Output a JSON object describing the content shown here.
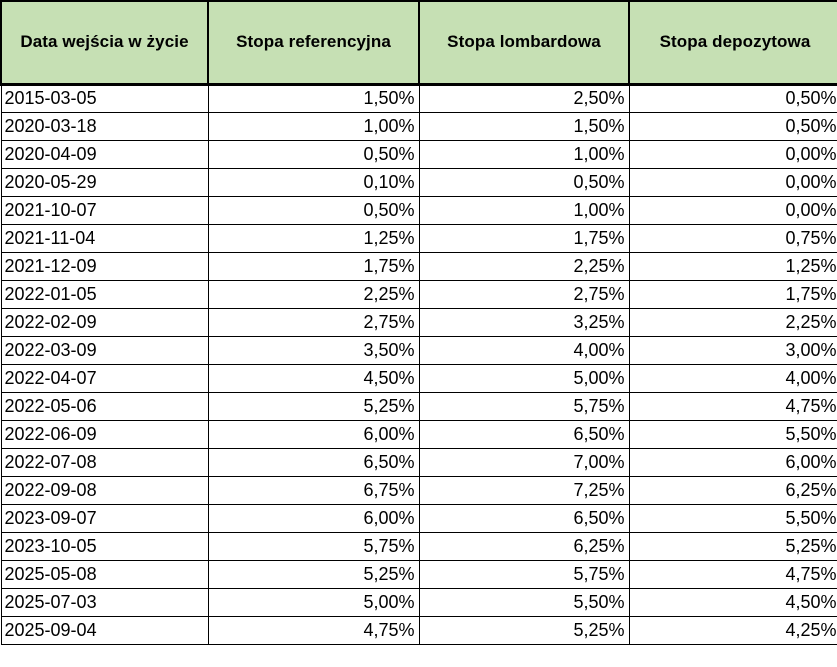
{
  "chart_data": {
    "type": "table",
    "columns": [
      "Data wejścia w życie",
      "Stopa referencyjna",
      "Stopa lombardowa",
      "Stopa depozytowa"
    ],
    "rows": [
      [
        "2015-03-05",
        "1,50%",
        "2,50%",
        "0,50%"
      ],
      [
        "2020-03-18",
        "1,00%",
        "1,50%",
        "0,50%"
      ],
      [
        "2020-04-09",
        "0,50%",
        "1,00%",
        "0,00%"
      ],
      [
        "2020-05-29",
        "0,10%",
        "0,50%",
        "0,00%"
      ],
      [
        "2021-10-07",
        "0,50%",
        "1,00%",
        "0,00%"
      ],
      [
        "2021-11-04",
        "1,25%",
        "1,75%",
        "0,75%"
      ],
      [
        "2021-12-09",
        "1,75%",
        "2,25%",
        "1,25%"
      ],
      [
        "2022-01-05",
        "2,25%",
        "2,75%",
        "1,75%"
      ],
      [
        "2022-02-09",
        "2,75%",
        "3,25%",
        "2,25%"
      ],
      [
        "2022-03-09",
        "3,50%",
        "4,00%",
        "3,00%"
      ],
      [
        "2022-04-07",
        "4,50%",
        "5,00%",
        "4,00%"
      ],
      [
        "2022-05-06",
        "5,25%",
        "5,75%",
        "4,75%"
      ],
      [
        "2022-06-09",
        "6,00%",
        "6,50%",
        "5,50%"
      ],
      [
        "2022-07-08",
        "6,50%",
        "7,00%",
        "6,00%"
      ],
      [
        "2022-09-08",
        "6,75%",
        "7,25%",
        "6,25%"
      ],
      [
        "2023-09-07",
        "6,00%",
        "6,50%",
        "5,50%"
      ],
      [
        "2023-10-05",
        "5,75%",
        "6,25%",
        "5,25%"
      ],
      [
        "2025-05-08",
        "5,25%",
        "5,75%",
        "4,75%"
      ],
      [
        "2025-07-03",
        "5,00%",
        "5,50%",
        "4,50%"
      ],
      [
        "2025-09-04",
        "4,75%",
        "5,25%",
        "4,25%"
      ]
    ],
    "layout": {
      "grid": true,
      "header_alignment": "center",
      "date_alignment": "left",
      "value_alignment": "right"
    }
  },
  "colors": {
    "header_bg": "#c6e0b4",
    "grid": "#000000",
    "text": "#000000",
    "row_bg": "#ffffff"
  }
}
